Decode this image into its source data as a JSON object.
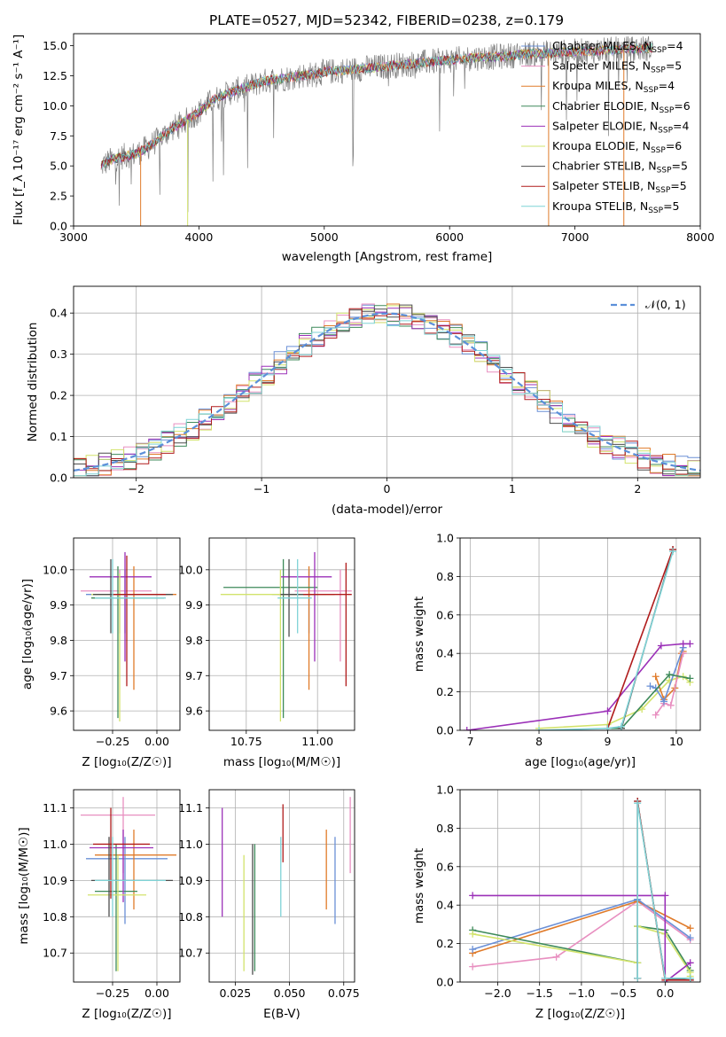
{
  "colors": {
    "chabrier_miles": "#6a8fd6",
    "salpeter_miles": "#e88fc0",
    "kroupa_miles": "#e07b2a",
    "chabrier_elodie": "#3e8a5a",
    "salpeter_elodie": "#9b30b8",
    "kroupa_elodie": "#d2e36b",
    "chabrier_stelib": "#4d4d4d",
    "salpeter_stelib": "#b01c1c",
    "kroupa_stelib": "#7fd3d6",
    "grid": "#b0b0b0",
    "normal_curve": "#5b8fd9",
    "data_spectrum": "#7f7f7f"
  },
  "text": {
    "title": "PLATE=0527, MJD=52342, FIBERID=0238, z=0.179",
    "spec_xlabel": "wavelength [Angstrom, rest frame]",
    "spec_ylabel": "Flux [f_λ 10⁻¹⁷ erg cm⁻² s⁻¹ A⁻¹]",
    "hist_xlabel": "(data-model)/error",
    "hist_ylabel": "Normed distribution",
    "normal_label": "𝒩(0, 1)",
    "age_ylabel": "age  [log₁₀(age/yr)]",
    "z_xlabel": "Z [log₁₀(Z/Z☉)]",
    "mass_xlabel": "mass [log₁₀(M/M☉)]",
    "mw_ylabel": "mass weight",
    "age_xlabel": "age  [log₁₀(age/yr)]",
    "mass_ylabel": "mass [log₁₀(M/M☉)]",
    "ebv_xlabel": "E(B-V)"
  },
  "chart_data": [
    {
      "id": "spectrum",
      "type": "line",
      "title": "PLATE=0527, MJD=52342, FIBERID=0238, z=0.179",
      "xlabel": "wavelength [Angstrom, rest frame]",
      "ylabel": "Flux [f_λ 10⁻¹⁷ erg cm⁻² s⁻¹ A⁻¹]",
      "xlim": [
        3000,
        8000
      ],
      "ylim": [
        0,
        16
      ],
      "xticks": [
        3000,
        4000,
        5000,
        6000,
        7000,
        8000
      ],
      "yticks": [
        0.0,
        2.5,
        5.0,
        7.5,
        10.0,
        12.5,
        15.0
      ],
      "legend_position": "top-right",
      "continuum": {
        "x": [
          3220,
          3300,
          3400,
          3500,
          3600,
          3700,
          3800,
          3900,
          4000,
          4100,
          4200,
          4300,
          4400,
          4500,
          4600,
          4700,
          4800,
          4900,
          5000,
          5200,
          5400,
          5600,
          5800,
          6000,
          6200,
          6400,
          6600,
          6800,
          7000,
          7200,
          7400,
          7600
        ],
        "y": [
          5.0,
          5.5,
          5.8,
          6.0,
          6.6,
          7.4,
          8.2,
          8.8,
          9.5,
          10.4,
          10.9,
          11.3,
          11.6,
          12.0,
          12.2,
          12.3,
          12.5,
          12.6,
          12.8,
          13.0,
          13.2,
          13.4,
          13.6,
          13.8,
          14.0,
          14.1,
          14.3,
          14.4,
          14.5,
          14.6,
          14.7,
          14.8
        ]
      },
      "series": [
        {
          "name": "Chabrier MILES, N_SSP=4",
          "label": "Chabrier MILES, N",
          "sub": "SSP",
          "suffix": "=4",
          "color": "#6a8fd6"
        },
        {
          "name": "Salpeter MILES, N_SSP=5",
          "label": "Salpeter MILES, N",
          "sub": "SSP",
          "suffix": "=5",
          "color": "#e88fc0"
        },
        {
          "name": "Kroupa MILES, N_SSP=4",
          "label": "Kroupa MILES, N",
          "sub": "SSP",
          "suffix": "=4",
          "color": "#e07b2a"
        },
        {
          "name": "Chabrier ELODIE, N_SSP=6",
          "label": "Chabrier ELODIE, N",
          "sub": "SSP",
          "suffix": "=6",
          "color": "#3e8a5a"
        },
        {
          "name": "Salpeter ELODIE, N_SSP=4",
          "label": "Salpeter ELODIE, N",
          "sub": "SSP",
          "suffix": "=4",
          "color": "#9b30b8"
        },
        {
          "name": "Kroupa ELODIE, N_SSP=6",
          "label": "Kroupa ELODIE, N",
          "sub": "SSP",
          "suffix": "=6",
          "color": "#d2e36b"
        },
        {
          "name": "Chabrier STELIB, N_SSP=5",
          "label": "Chabrier STELIB, N",
          "sub": "SSP",
          "suffix": "=5",
          "color": "#4d4d4d"
        },
        {
          "name": "Salpeter STELIB, N_SSP=5",
          "label": "Salpeter STELIB, N",
          "sub": "SSP",
          "suffix": "=5",
          "color": "#b01c1c"
        },
        {
          "name": "Kroupa STELIB, N_SSP=5",
          "label": "Kroupa STELIB, N",
          "sub": "SSP",
          "suffix": "=5",
          "color": "#7fd3d6"
        }
      ]
    },
    {
      "id": "residuals",
      "type": "bar",
      "xlabel": "(data-model)/error",
      "ylabel": "Normed distribution",
      "xlim": [
        -2.5,
        2.5
      ],
      "ylim": [
        0,
        0.465
      ],
      "xticks": [
        -2,
        -1,
        0,
        1,
        2
      ],
      "yticks": [
        0.0,
        0.1,
        0.2,
        0.3,
        0.4
      ],
      "bin_width": 0.1,
      "legend": "𝒩(0, 1)",
      "legend_position": "top-right"
    },
    {
      "id": "age_vs_Z",
      "type": "scatter",
      "xlabel": "Z [log₁₀(Z/Z☉)]",
      "ylabel": "age  [log₁₀(age/yr)]",
      "xlim": [
        -0.47,
        0.13
      ],
      "ylim": [
        9.545,
        10.09
      ],
      "xticks": [
        -0.25,
        0.0
      ],
      "yticks": [
        9.6,
        9.7,
        9.8,
        9.9,
        10.0
      ],
      "points": [
        {
          "x": -0.18,
          "y": 9.93,
          "xerr": [
            0.22,
            0.24
          ],
          "yerr": [
            0.11,
            0.07
          ],
          "color": "#6a8fd6"
        },
        {
          "x": -0.21,
          "y": 9.94,
          "xerr": [
            0.22,
            0.18
          ],
          "yerr": [
            0.12,
            0.06
          ],
          "color": "#e88fc0"
        },
        {
          "x": -0.13,
          "y": 9.93,
          "xerr": [
            0.22,
            0.24
          ],
          "yerr": [
            0.27,
            0.08
          ],
          "color": "#e07b2a"
        },
        {
          "x": -0.22,
          "y": 9.92,
          "xerr": [
            0.15,
            0.26
          ],
          "yerr": [
            0.34,
            0.09
          ],
          "color": "#3e8a5a"
        },
        {
          "x": -0.18,
          "y": 9.98,
          "xerr": [
            0.2,
            0.15
          ],
          "yerr": [
            0.24,
            0.07
          ],
          "color": "#9b30b8"
        },
        {
          "x": -0.21,
          "y": 9.93,
          "xerr": [
            0.16,
            0.15
          ],
          "yerr": [
            0.36,
            0.06
          ],
          "color": "#d2e36b"
        },
        {
          "x": -0.26,
          "y": 9.93,
          "xerr": [
            0.1,
            0.35
          ],
          "yerr": [
            0.11,
            0.1
          ],
          "color": "#4d4d4d"
        },
        {
          "x": -0.17,
          "y": 9.93,
          "xerr": [
            0.08,
            0.22
          ],
          "yerr": [
            0.26,
            0.11
          ],
          "color": "#b01c1c"
        },
        {
          "x": -0.25,
          "y": 9.92,
          "xerr": [
            0.1,
            0.3
          ],
          "yerr": [
            0.1,
            0.11
          ],
          "color": "#7fd3d6"
        }
      ]
    },
    {
      "id": "age_vs_mass",
      "type": "scatter",
      "xlabel": "mass [log₁₀(M/M☉)]",
      "ylabel": "",
      "xlim": [
        10.62,
        11.13
      ],
      "ylim": [
        9.545,
        10.09
      ],
      "xticks": [
        10.75,
        11.0
      ],
      "yticks": [
        9.6,
        9.7,
        9.8,
        9.9,
        10.0
      ],
      "points": [
        {
          "x": 10.97,
          "y": 9.93,
          "xerr": [
            0.13,
            0.06
          ],
          "yerr": [
            0.11,
            0.07
          ],
          "color": "#6a8fd6"
        },
        {
          "x": 11.08,
          "y": 9.94,
          "xerr": [
            0.16,
            0.04
          ],
          "yerr": [
            0.2,
            0.06
          ],
          "color": "#e88fc0"
        },
        {
          "x": 10.97,
          "y": 9.93,
          "xerr": [
            0.11,
            0.09
          ],
          "yerr": [
            0.27,
            0.08
          ],
          "color": "#e07b2a"
        },
        {
          "x": 10.88,
          "y": 9.95,
          "xerr": [
            0.21,
            0.12
          ],
          "yerr": [
            0.37,
            0.08
          ],
          "color": "#3e8a5a"
        },
        {
          "x": 10.99,
          "y": 9.98,
          "xerr": [
            0.12,
            0.06
          ],
          "yerr": [
            0.24,
            0.07
          ],
          "color": "#9b30b8"
        },
        {
          "x": 10.87,
          "y": 9.93,
          "xerr": [
            0.21,
            0.1
          ],
          "yerr": [
            0.36,
            0.07
          ],
          "color": "#d2e36b"
        },
        {
          "x": 10.9,
          "y": 9.93,
          "xerr": [
            0.03,
            0.1
          ],
          "yerr": [
            0.12,
            0.1
          ],
          "color": "#4d4d4d"
        },
        {
          "x": 11.1,
          "y": 9.93,
          "xerr": [
            0.15,
            0.02
          ],
          "yerr": [
            0.26,
            0.09
          ],
          "color": "#b01c1c"
        },
        {
          "x": 10.93,
          "y": 9.92,
          "xerr": [
            0.07,
            0.05
          ],
          "yerr": [
            0.1,
            0.11
          ],
          "color": "#7fd3d6"
        }
      ]
    },
    {
      "id": "mw_vs_age",
      "type": "line",
      "xlabel": "age  [log₁₀(age/yr)]",
      "ylabel": "mass weight",
      "xlim": [
        6.85,
        10.35
      ],
      "ylim": [
        0,
        1.0
      ],
      "xticks": [
        7,
        8,
        9,
        10
      ],
      "yticks": [
        0.0,
        0.2,
        0.4,
        0.6,
        0.8,
        1.0
      ],
      "series": [
        {
          "color": "#d2e36b",
          "x": [
            8.0,
            9.0,
            9.5,
            9.9,
            10.1,
            10.2
          ],
          "y": [
            0.01,
            0.03,
            0.11,
            0.26,
            0.28,
            0.25
          ]
        },
        {
          "color": "#e07b2a",
          "x": [
            9.7,
            9.82,
            9.98,
            10.08,
            10.1
          ],
          "y": [
            0.28,
            0.16,
            0.22,
            0.4,
            0.41
          ]
        },
        {
          "color": "#e88fc0",
          "x": [
            9.7,
            9.82,
            9.92,
            10.1
          ],
          "y": [
            0.08,
            0.14,
            0.13,
            0.4
          ]
        },
        {
          "color": "#6a8fd6",
          "x": [
            9.62,
            9.7,
            9.82,
            10.1
          ],
          "y": [
            0.23,
            0.22,
            0.15,
            0.43
          ]
        },
        {
          "color": "#3e8a5a",
          "x": [
            9.0,
            9.2,
            9.9,
            10.2
          ],
          "y": [
            0.01,
            0.01,
            0.29,
            0.27
          ]
        },
        {
          "color": "#9b30b8",
          "x": [
            6.95,
            9.0,
            9.78,
            10.1,
            10.2
          ],
          "y": [
            0.0,
            0.1,
            0.44,
            0.45,
            0.45
          ]
        },
        {
          "color": "#4d4d4d",
          "x": [
            9.2,
            9.95
          ],
          "y": [
            0.01,
            0.94
          ]
        },
        {
          "color": "#b01c1c",
          "x": [
            9.0,
            9.95
          ],
          "y": [
            0.01,
            0.94
          ]
        },
        {
          "color": "#7fd3d6",
          "x": [
            8.0,
            9.0,
            9.2,
            9.95
          ],
          "y": [
            0.0,
            0.01,
            0.02,
            0.93
          ]
        }
      ]
    },
    {
      "id": "mass_vs_Z",
      "type": "scatter",
      "xlabel": "Z [log₁₀(Z/Z☉)]",
      "ylabel": "mass [log₁₀(M/M☉)]",
      "xlim": [
        -0.47,
        0.13
      ],
      "ylim": [
        10.62,
        11.15
      ],
      "xticks": [
        -0.25,
        0.0
      ],
      "yticks": [
        10.7,
        10.8,
        10.9,
        11.0,
        11.1
      ],
      "points": [
        {
          "x": -0.18,
          "y": 10.96,
          "xerr": [
            0.22,
            0.24
          ],
          "yerr": [
            0.18,
            0.06
          ],
          "color": "#6a8fd6"
        },
        {
          "x": -0.19,
          "y": 11.08,
          "xerr": [
            0.24,
            0.18
          ],
          "yerr": [
            0.16,
            0.05
          ],
          "color": "#e88fc0"
        },
        {
          "x": -0.13,
          "y": 10.97,
          "xerr": [
            0.22,
            0.24
          ],
          "yerr": [
            0.15,
            0.07
          ],
          "color": "#e07b2a"
        },
        {
          "x": -0.23,
          "y": 10.87,
          "xerr": [
            0.12,
            0.12
          ],
          "yerr": [
            0.22,
            0.13
          ],
          "color": "#3e8a5a"
        },
        {
          "x": -0.19,
          "y": 10.99,
          "xerr": [
            0.19,
            0.17
          ],
          "yerr": [
            0.15,
            0.05
          ],
          "color": "#9b30b8"
        },
        {
          "x": -0.22,
          "y": 10.86,
          "xerr": [
            0.17,
            0.16
          ],
          "yerr": [
            0.21,
            0.11
          ],
          "color": "#d2e36b"
        },
        {
          "x": -0.27,
          "y": 10.9,
          "xerr": [
            0.1,
            0.36
          ],
          "yerr": [
            0.1,
            0.12
          ],
          "color": "#4d4d4d"
        },
        {
          "x": -0.26,
          "y": 11.0,
          "xerr": [
            0.1,
            0.22
          ],
          "yerr": [
            0.15,
            0.1
          ],
          "color": "#b01c1c"
        },
        {
          "x": -0.25,
          "y": 10.9,
          "xerr": [
            0.1,
            0.3
          ],
          "yerr": [
            0.1,
            0.12
          ],
          "color": "#7fd3d6"
        }
      ]
    },
    {
      "id": "mass_vs_ebv",
      "type": "scatter",
      "xlabel": "E(B-V)",
      "ylabel": "",
      "xlim": [
        0.013,
        0.08
      ],
      "ylim": [
        10.62,
        11.15
      ],
      "xticks": [
        0.025,
        0.05,
        0.075
      ],
      "yticks": [
        10.7,
        10.8,
        10.9,
        11.0,
        11.1
      ],
      "points": [
        {
          "x": 0.071,
          "y": 10.96,
          "yerr": [
            0.18,
            0.06
          ],
          "color": "#6a8fd6"
        },
        {
          "x": 0.078,
          "y": 11.08,
          "yerr": [
            0.16,
            0.05
          ],
          "color": "#e88fc0"
        },
        {
          "x": 0.067,
          "y": 10.97,
          "yerr": [
            0.15,
            0.07
          ],
          "color": "#e07b2a"
        },
        {
          "x": 0.034,
          "y": 10.87,
          "yerr": [
            0.22,
            0.13
          ],
          "color": "#3e8a5a"
        },
        {
          "x": 0.019,
          "y": 10.99,
          "yerr": [
            0.19,
            0.11
          ],
          "color": "#9b30b8"
        },
        {
          "x": 0.029,
          "y": 10.86,
          "yerr": [
            0.21,
            0.11
          ],
          "color": "#d2e36b"
        },
        {
          "x": 0.033,
          "y": 10.9,
          "yerr": [
            0.26,
            0.1
          ],
          "color": "#4d4d4d"
        },
        {
          "x": 0.047,
          "y": 11.05,
          "yerr": [
            0.1,
            0.06
          ],
          "color": "#b01c1c"
        },
        {
          "x": 0.046,
          "y": 10.9,
          "yerr": [
            0.1,
            0.12
          ],
          "color": "#7fd3d6"
        }
      ]
    },
    {
      "id": "mw_vs_Z",
      "type": "line",
      "xlabel": "Z [log₁₀(Z/Z☉)]",
      "ylabel": "mass weight",
      "xlim": [
        -2.45,
        0.42
      ],
      "ylim": [
        0,
        1.0
      ],
      "xticks": [
        -2.0,
        -1.5,
        -1.0,
        -0.5,
        0.0
      ],
      "yticks": [
        0.0,
        0.2,
        0.4,
        0.6,
        0.8,
        1.0
      ],
      "series": [
        {
          "color": "#e88fc0",
          "x": [
            -2.3,
            -1.3,
            -0.33,
            0.3
          ],
          "y": [
            0.08,
            0.13,
            0.42,
            0.22
          ]
        },
        {
          "color": "#e07b2a",
          "x": [
            -2.3,
            -0.33,
            0.3
          ],
          "y": [
            0.15,
            0.42,
            0.28
          ]
        },
        {
          "color": "#6a8fd6",
          "x": [
            -2.3,
            -0.33,
            0.3
          ],
          "y": [
            0.17,
            0.43,
            0.23
          ]
        },
        {
          "color": "#3e8a5a",
          "x": [
            -2.3,
            -0.33,
            -0.33,
            0.0,
            0.3,
            0.3
          ],
          "y": [
            0.27,
            0.1,
            0.29,
            0.27,
            0.06,
            0.02
          ]
        },
        {
          "color": "#d2e36b",
          "x": [
            -2.3,
            -0.33,
            -0.33,
            0.0,
            0.3,
            0.3
          ],
          "y": [
            0.25,
            0.1,
            0.29,
            0.25,
            0.05,
            0.03
          ]
        },
        {
          "color": "#9b30b8",
          "x": [
            -2.3,
            0.0,
            0.0,
            0.3
          ],
          "y": [
            0.45,
            0.45,
            0.0,
            0.1
          ]
        },
        {
          "color": "#4d4d4d",
          "x": [
            -0.33,
            -0.33,
            0.0,
            0.3
          ],
          "y": [
            0.02,
            0.94,
            0.02,
            0.01
          ]
        },
        {
          "color": "#b01c1c",
          "x": [
            -0.33,
            -0.33,
            0.0,
            0.3
          ],
          "y": [
            0.02,
            0.94,
            0.01,
            0.01
          ]
        },
        {
          "color": "#7fd3d6",
          "x": [
            -0.33,
            -0.33,
            0.0,
            0.3
          ],
          "y": [
            0.02,
            0.93,
            0.02,
            0.02
          ]
        }
      ]
    }
  ]
}
